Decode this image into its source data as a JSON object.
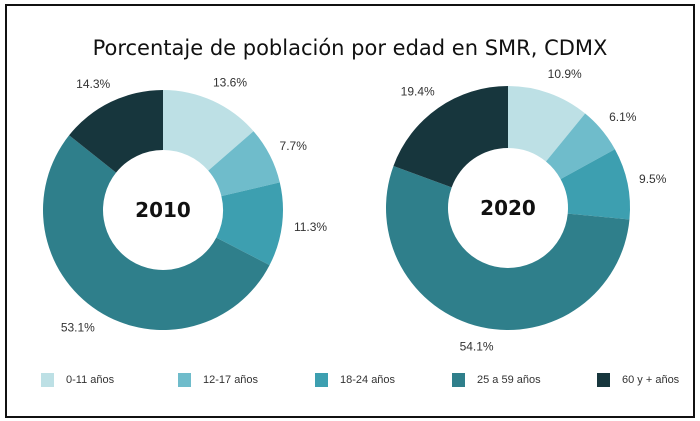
{
  "chart_data": {
    "type": "pie",
    "variant": "donut",
    "title": "Porcentaje de población por edad en SMR, CDMX",
    "categories": [
      "0-11 años",
      "12-17 años",
      "18-24 años",
      "25 a 59 años",
      "60 y + años"
    ],
    "colors": [
      "#bde0e5",
      "#6fbccb",
      "#3d9fb0",
      "#2f7f8b",
      "#17363d"
    ],
    "legend_position": "bottom",
    "charts": [
      {
        "center_label": "2010",
        "values": [
          13.6,
          7.7,
          11.3,
          53.1,
          14.3
        ],
        "labels": [
          "13.6%",
          "7.7%",
          "11.3%",
          "53.1%",
          "14.3%"
        ]
      },
      {
        "center_label": "2020",
        "values": [
          10.9,
          6.1,
          9.5,
          54.1,
          19.4
        ],
        "labels": [
          "10.9%",
          "6.1%",
          "9.5%",
          "54.1%",
          "19.4%"
        ]
      }
    ]
  }
}
